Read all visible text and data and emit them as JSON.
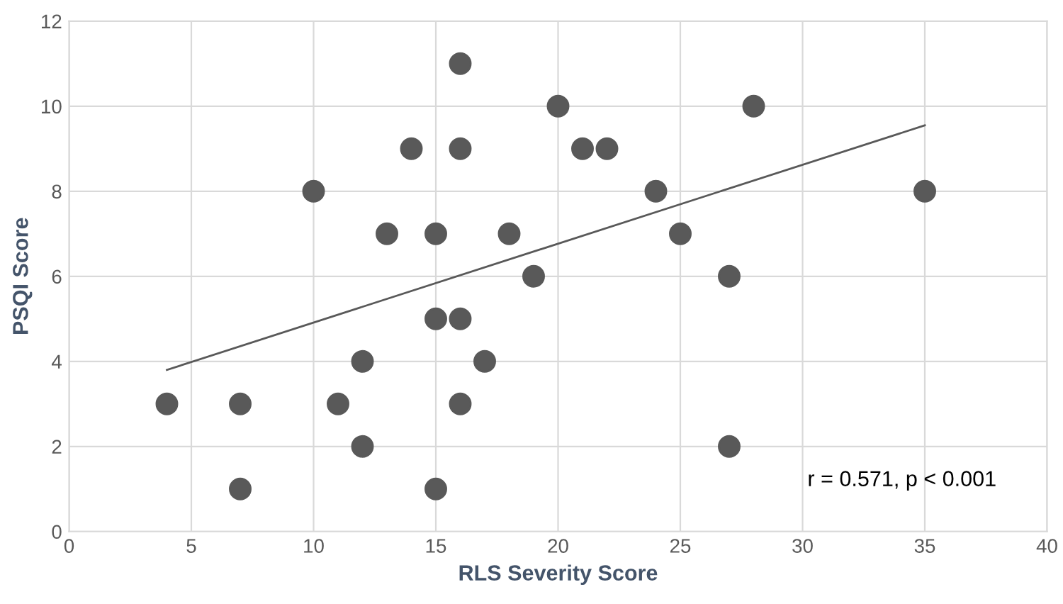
{
  "chart_data": {
    "type": "scatter",
    "xlabel": "RLS Severity Score",
    "ylabel": "PSQI Score",
    "series": [
      {
        "color": "#595959",
        "marker": "circle",
        "x": [
          4,
          7,
          7,
          10,
          11,
          12,
          12,
          13,
          14,
          15,
          15,
          15,
          16,
          16,
          16,
          16,
          17,
          18,
          19,
          20,
          21,
          22,
          24,
          25,
          27,
          27,
          28,
          35
        ],
        "values": [
          3,
          3,
          1,
          8,
          3,
          4,
          2,
          7,
          9,
          7,
          5,
          1,
          11,
          9,
          5,
          3,
          4,
          7,
          6,
          10,
          9,
          9,
          8,
          7,
          6,
          2,
          10,
          8
        ]
      },
      {
        "type": "line",
        "marker": "none",
        "color": "#595959",
        "x": [
          4,
          35
        ],
        "values": [
          3.8,
          9.55
        ]
      }
    ],
    "xlim": [
      0,
      40
    ],
    "xticks": [
      0,
      5,
      10,
      15,
      20,
      25,
      30,
      35,
      40
    ],
    "ylim": [
      0,
      12
    ],
    "yticks": [
      0,
      2,
      4,
      6,
      8,
      10,
      12
    ],
    "grid": true,
    "annotations": [
      "r = 0.571, p < 0.001"
    ]
  }
}
